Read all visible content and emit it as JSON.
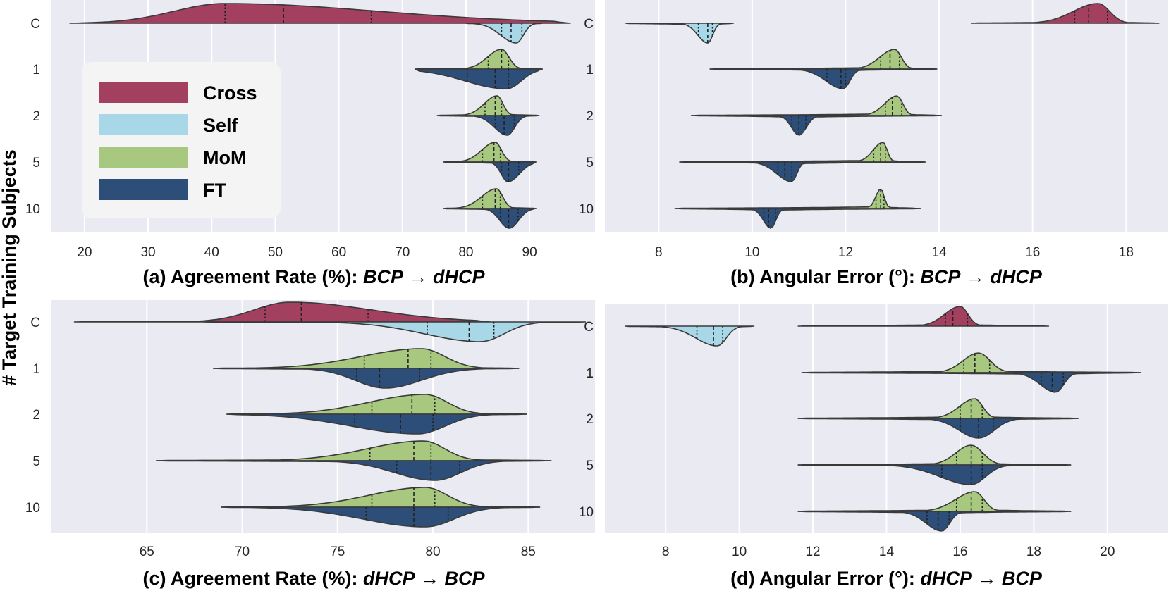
{
  "y_axis_label": "# Target Training Subjects",
  "legend": [
    {
      "label": "Cross",
      "color": "#A4405F"
    },
    {
      "label": "Self",
      "color": "#A8D8E8"
    },
    {
      "label": "MoM",
      "color": "#A8C880"
    },
    {
      "label": "FT",
      "color": "#2C4E78"
    }
  ],
  "chart_data": [
    {
      "type": "violin",
      "title_prefix": "(a) Agreement Rate (%): ",
      "title_source": "BCP",
      "title_arrow": "→",
      "title_target": "dHCP",
      "xlim": [
        14.8,
        100.3
      ],
      "xticks": [
        20,
        30,
        40,
        50,
        60,
        70,
        80,
        90
      ],
      "categories": [
        "C",
        "1",
        "2",
        "5",
        "10"
      ],
      "violins": [
        {
          "row": "C",
          "side": "top",
          "series": "Cross",
          "min": 17.7,
          "max": 96.4,
          "quartiles": [
            42.1,
            51.3,
            65.1
          ],
          "peak": 42.1
        },
        {
          "row": "C",
          "side": "bottom",
          "series": "Self",
          "min": 80.0,
          "max": 92.0,
          "quartiles": [
            85.6,
            87.1,
            88.8
          ],
          "peak": 87.9
        },
        {
          "row": "1",
          "side": "top",
          "series": "MoM",
          "min": 72.0,
          "max": 92.0,
          "quartiles": [
            83.5,
            85.6,
            86.7
          ],
          "peak": 85.6
        },
        {
          "row": "1",
          "side": "bottom",
          "series": "FT",
          "min": 72.0,
          "max": 92.0,
          "quartiles": [
            80.2,
            84.6,
            86.7
          ],
          "peak": 86.4
        },
        {
          "row": "2",
          "side": "top",
          "series": "MoM",
          "min": 75.5,
          "max": 91.5,
          "quartiles": [
            83.0,
            84.6,
            85.6
          ],
          "peak": 84.9
        },
        {
          "row": "2",
          "side": "bottom",
          "series": "FT",
          "min": 75.5,
          "max": 91.5,
          "quartiles": [
            84.6,
            86.0,
            87.6
          ],
          "peak": 86.5
        },
        {
          "row": "5",
          "side": "top",
          "series": "MoM",
          "min": 76.5,
          "max": 91.0,
          "quartiles": [
            82.6,
            84.4,
            85.4
          ],
          "peak": 84.6
        },
        {
          "row": "5",
          "side": "bottom",
          "series": "FT",
          "min": 76.5,
          "max": 91.0,
          "quartiles": [
            85.6,
            86.7,
            88.3
          ],
          "peak": 86.6
        },
        {
          "row": "10",
          "side": "top",
          "series": "MoM",
          "min": 76.5,
          "max": 91.0,
          "quartiles": [
            82.6,
            84.6,
            85.4
          ],
          "peak": 84.8
        },
        {
          "row": "10",
          "side": "bottom",
          "series": "FT",
          "min": 76.5,
          "max": 91.0,
          "quartiles": [
            85.4,
            86.7,
            88.2
          ],
          "peak": 86.8
        }
      ]
    },
    {
      "type": "violin",
      "title_prefix": "(b) Angular Error (°): ",
      "title_source": "BCP",
      "title_arrow": "→",
      "title_target": "dHCP",
      "xlim": [
        6.85,
        18.9
      ],
      "xticks": [
        8,
        10,
        12,
        14,
        16,
        18
      ],
      "categories": [
        "C",
        "1",
        "2",
        "5",
        "10"
      ],
      "violins": [
        {
          "row": "C",
          "side": "bottom",
          "series": "Self",
          "min": 7.3,
          "max": 9.6,
          "quartiles": [
            8.85,
            9.05,
            9.15
          ],
          "peak": 9.05
        },
        {
          "row": "C",
          "side": "top",
          "series": "Cross",
          "min": 14.7,
          "max": 18.7,
          "quartiles": [
            16.9,
            17.2,
            17.6
          ],
          "peak": 17.4
        },
        {
          "row": "1",
          "side": "top",
          "series": "MoM",
          "min": 9.1,
          "max": 13.95,
          "quartiles": [
            12.75,
            12.95,
            13.15
          ],
          "peak": 13.05
        },
        {
          "row": "1",
          "side": "bottom",
          "series": "FT",
          "min": 9.1,
          "max": 13.95,
          "quartiles": [
            11.6,
            11.9,
            12.0
          ],
          "peak": 11.95
        },
        {
          "row": "2",
          "side": "top",
          "series": "MoM",
          "min": 8.7,
          "max": 14.05,
          "quartiles": [
            12.85,
            13.0,
            13.2
          ],
          "peak": 13.1
        },
        {
          "row": "2",
          "side": "bottom",
          "series": "FT",
          "min": 8.7,
          "max": 14.05,
          "quartiles": [
            10.85,
            11.0,
            11.15
          ],
          "peak": 11.0
        },
        {
          "row": "5",
          "side": "top",
          "series": "MoM",
          "min": 8.45,
          "max": 13.7,
          "quartiles": [
            12.6,
            12.75,
            12.85
          ],
          "peak": 12.8
        },
        {
          "row": "5",
          "side": "bottom",
          "series": "FT",
          "min": 8.45,
          "max": 13.7,
          "quartiles": [
            10.55,
            10.7,
            10.85
          ],
          "peak": 10.85
        },
        {
          "row": "10",
          "side": "top",
          "series": "MoM",
          "min": 8.35,
          "max": 13.6,
          "quartiles": [
            12.65,
            12.75,
            12.82
          ],
          "peak": 12.75
        },
        {
          "row": "10",
          "side": "bottom",
          "series": "FT",
          "min": 8.35,
          "max": 13.6,
          "quartiles": [
            10.25,
            10.35,
            10.5
          ],
          "peak": 10.4
        }
      ]
    },
    {
      "type": "violin",
      "title_prefix": "(c) Agreement Rate (%): ",
      "title_source": "dHCP",
      "title_arrow": "→",
      "title_target": "BCP",
      "xlim": [
        60.0,
        88.5
      ],
      "xticks": [
        65,
        70,
        75,
        80,
        85
      ],
      "categories": [
        "C",
        "1",
        "2",
        "5",
        "10"
      ],
      "violins": [
        {
          "row": "C",
          "side": "top",
          "series": "Cross",
          "min": 61.2,
          "max": 83.0,
          "quartiles": [
            71.2,
            73.1,
            76.6
          ],
          "peak": 72.5
        },
        {
          "row": "C",
          "side": "bottom",
          "series": "Self",
          "min": 68.0,
          "max": 88.0,
          "quartiles": [
            79.7,
            81.9,
            83.2
          ],
          "peak": 82.5
        },
        {
          "row": "1",
          "side": "top",
          "series": "MoM",
          "min": 68.5,
          "max": 84.5,
          "quartiles": [
            76.4,
            78.7,
            79.9
          ],
          "peak": 79.4
        },
        {
          "row": "1",
          "side": "bottom",
          "series": "FT",
          "min": 68.5,
          "max": 84.5,
          "quartiles": [
            76.0,
            77.2,
            79.3
          ],
          "peak": 77.5
        },
        {
          "row": "2",
          "side": "top",
          "series": "MoM",
          "min": 69.2,
          "max": 84.9,
          "quartiles": [
            76.8,
            78.9,
            80.1
          ],
          "peak": 79.6
        },
        {
          "row": "2",
          "side": "bottom",
          "series": "FT",
          "min": 69.2,
          "max": 84.9,
          "quartiles": [
            75.9,
            78.3,
            80.0
          ],
          "peak": 79.2
        },
        {
          "row": "5",
          "side": "top",
          "series": "MoM",
          "min": 65.5,
          "max": 86.2,
          "quartiles": [
            76.7,
            79.0,
            79.9
          ],
          "peak": 79.5
        },
        {
          "row": "5",
          "side": "bottom",
          "series": "FT",
          "min": 65.5,
          "max": 86.2,
          "quartiles": [
            78.1,
            79.9,
            81.4
          ],
          "peak": 80.1
        },
        {
          "row": "10",
          "side": "top",
          "series": "MoM",
          "min": 68.9,
          "max": 85.6,
          "quartiles": [
            76.8,
            79.0,
            80.1
          ],
          "peak": 79.6
        },
        {
          "row": "10",
          "side": "bottom",
          "series": "FT",
          "min": 68.9,
          "max": 85.6,
          "quartiles": [
            76.5,
            79.0,
            80.8
          ],
          "peak": 79.6
        }
      ]
    },
    {
      "type": "violin",
      "title_prefix": "(d) Angular Error (°): ",
      "title_source": "dHCP",
      "title_arrow": "→",
      "title_target": "BCP",
      "xlim": [
        6.35,
        21.65
      ],
      "xticks": [
        8,
        10,
        12,
        14,
        16,
        18,
        20
      ],
      "categories": [
        "C",
        "1",
        "2",
        "5",
        "10"
      ],
      "violins": [
        {
          "row": "C",
          "side": "bottom",
          "series": "Self",
          "min": 6.9,
          "max": 10.4,
          "quartiles": [
            8.85,
            9.3,
            9.55
          ],
          "peak": 9.4
        },
        {
          "row": "C",
          "side": "top",
          "series": "Cross",
          "min": 11.6,
          "max": 18.4,
          "quartiles": [
            15.6,
            15.8,
            16.2
          ],
          "peak": 16.0
        },
        {
          "row": "1",
          "side": "top",
          "series": "MoM",
          "min": 11.7,
          "max": 20.9,
          "quartiles": [
            16.1,
            16.4,
            16.8
          ],
          "peak": 16.5
        },
        {
          "row": "1",
          "side": "bottom",
          "series": "FT",
          "min": 11.7,
          "max": 20.9,
          "quartiles": [
            18.2,
            18.5,
            18.8
          ],
          "peak": 18.6
        },
        {
          "row": "2",
          "side": "top",
          "series": "MoM",
          "min": 11.6,
          "max": 19.2,
          "quartiles": [
            16.0,
            16.3,
            16.6
          ],
          "peak": 16.4
        },
        {
          "row": "2",
          "side": "bottom",
          "series": "FT",
          "min": 11.6,
          "max": 19.2,
          "quartiles": [
            16.0,
            16.5,
            16.9
          ],
          "peak": 16.5
        },
        {
          "row": "5",
          "side": "top",
          "series": "MoM",
          "min": 11.6,
          "max": 19.0,
          "quartiles": [
            15.9,
            16.3,
            16.6
          ],
          "peak": 16.3
        },
        {
          "row": "5",
          "side": "bottom",
          "series": "FT",
          "min": 11.6,
          "max": 19.0,
          "quartiles": [
            15.5,
            16.3,
            16.6
          ],
          "peak": 16.3
        },
        {
          "row": "10",
          "side": "top",
          "series": "MoM",
          "min": 11.6,
          "max": 19.0,
          "quartiles": [
            15.9,
            16.3,
            16.6
          ],
          "peak": 16.4
        },
        {
          "row": "10",
          "side": "bottom",
          "series": "FT",
          "min": 11.6,
          "max": 19.0,
          "quartiles": [
            15.1,
            15.4,
            15.7
          ],
          "peak": 15.5
        }
      ]
    }
  ]
}
